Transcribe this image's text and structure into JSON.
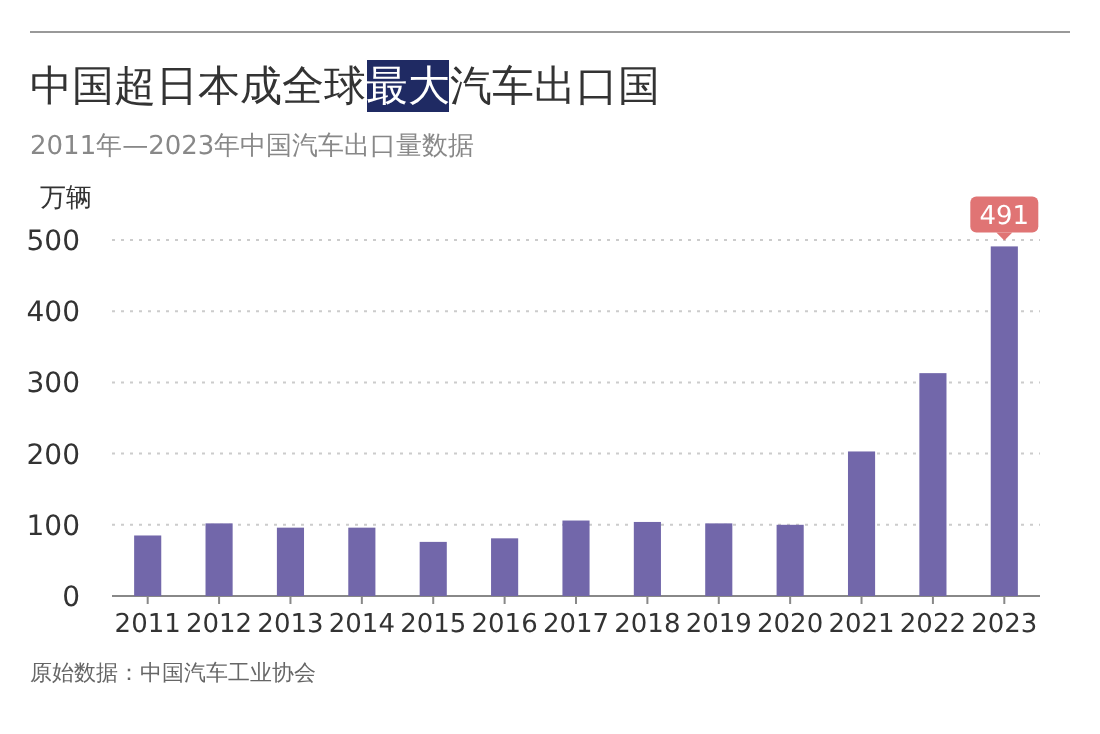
{
  "chart_data": {
    "type": "bar",
    "title": "中国超日本成全球最大汽车出口国",
    "subtitle": "2011年—2023年中国汽车出口量数据",
    "ylabel": "万辆",
    "categories": [
      "2011",
      "2012",
      "2013",
      "2014",
      "2015",
      "2016",
      "2017",
      "2018",
      "2019",
      "2020",
      "2021",
      "2022",
      "2023"
    ],
    "values": [
      85,
      102,
      96,
      96,
      76,
      81,
      106,
      104,
      102,
      100,
      203,
      313,
      491
    ],
    "value_labels": [
      null,
      null,
      null,
      null,
      null,
      null,
      null,
      null,
      null,
      null,
      null,
      null,
      "491"
    ],
    "color": "#7267aa",
    "ylim": [
      0,
      500
    ],
    "yticks": [
      0,
      100,
      200,
      300,
      400,
      500
    ],
    "grid": "y",
    "annotations": [
      "原始数据：中国汽车工业协会"
    ]
  }
}
